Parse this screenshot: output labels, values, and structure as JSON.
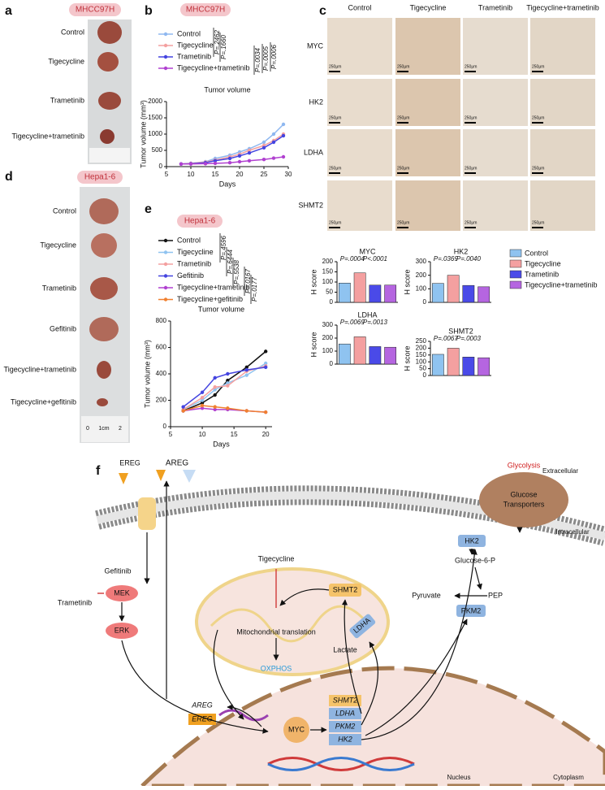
{
  "panel_labels": [
    "a",
    "b",
    "c",
    "d",
    "e",
    "f"
  ],
  "panel_a": {
    "model": "MHCC97H",
    "groups": [
      "Control",
      "Tigecycline",
      "Trametinib",
      "Tigecycline+trametinib"
    ]
  },
  "panel_d": {
    "model": "Hepa1-6",
    "groups": [
      "Control",
      "Tigecycline",
      "Trametinib",
      "Gefitinib",
      "Tigecycline+trametinib",
      "Tigecycline+gefitinib"
    ],
    "ruler": [
      "0",
      "1cm",
      "2"
    ]
  },
  "panel_c": {
    "columns": [
      "Control",
      "Tigecycline",
      "Trametinib",
      "Tigecycline+trametinib"
    ],
    "rows": [
      "MYC",
      "HK2",
      "LDHA",
      "SHMT2"
    ],
    "scale_bar": "250μm"
  },
  "legend": [
    {
      "name": "Control",
      "color": "#8fc3f0"
    },
    {
      "name": "Tigecycline",
      "color": "#f4a0a0"
    },
    {
      "name": "Trametinib",
      "color": "#4a4ae8"
    },
    {
      "name": "Tigecycline+trametinib",
      "color": "#b565e0"
    }
  ],
  "chart_data": [
    {
      "type": "line",
      "model": "MHCC97H",
      "title": "Tumor volume",
      "xlabel": "Days",
      "ylabel": "Tumor volume (mm³)",
      "x": [
        8,
        10,
        13,
        15,
        18,
        20,
        22,
        25,
        27,
        29
      ],
      "xlim": [
        5,
        30
      ],
      "xticks": [
        5,
        10,
        15,
        20,
        25,
        30
      ],
      "ylim": [
        0,
        2000
      ],
      "yticks": [
        0,
        500,
        1000,
        1500,
        2000
      ],
      "series": [
        {
          "name": "Control",
          "color": "#8fb8f0",
          "values": [
            80,
            100,
            150,
            250,
            350,
            450,
            550,
            750,
            1000,
            1300
          ]
        },
        {
          "name": "Tigecycline",
          "color": "#f4a0a0",
          "values": [
            80,
            100,
            140,
            200,
            300,
            380,
            500,
            650,
            800,
            1000
          ]
        },
        {
          "name": "Trametinib",
          "color": "#4444e0",
          "values": [
            80,
            90,
            120,
            180,
            250,
            330,
            420,
            580,
            750,
            950
          ]
        },
        {
          "name": "Tigecycline+trametinib",
          "color": "#b040d0",
          "values": [
            80,
            80,
            90,
            100,
            120,
            150,
            180,
            220,
            260,
            300
          ]
        }
      ],
      "annotations": [
        "P=.2462",
        "P=.1660",
        "P=.0034",
        "P=.0005",
        "P=.0006"
      ]
    },
    {
      "type": "line",
      "model": "Hepa1-6",
      "title": "Tumor volume",
      "xlabel": "Days",
      "ylabel": "Tumor volume (mm³)",
      "x": [
        7,
        10,
        12,
        14,
        17,
        20
      ],
      "xlim": [
        5,
        21
      ],
      "xticks": [
        5,
        10,
        15,
        20
      ],
      "ylim": [
        0,
        800
      ],
      "yticks": [
        0,
        200,
        400,
        600,
        800
      ],
      "series": [
        {
          "name": "Control",
          "color": "#111111",
          "values": [
            120,
            180,
            240,
            350,
            450,
            570
          ]
        },
        {
          "name": "Tigecycline",
          "color": "#8fc3f0",
          "values": [
            130,
            200,
            280,
            330,
            390,
            480
          ]
        },
        {
          "name": "Trametinib",
          "color": "#f4a0a0",
          "values": [
            130,
            220,
            300,
            310,
            420,
            460
          ]
        },
        {
          "name": "Gefitinib",
          "color": "#4444e0",
          "values": [
            150,
            260,
            370,
            400,
            430,
            450
          ]
        },
        {
          "name": "Tigecycline+trametinib",
          "color": "#b040d0",
          "values": [
            120,
            140,
            130,
            130,
            120,
            110
          ]
        },
        {
          "name": "Tigecycline+gefitinib",
          "color": "#f08030",
          "values": [
            120,
            160,
            150,
            140,
            120,
            110
          ]
        }
      ],
      "annotations": [
        "P=.4596",
        "P=.6444",
        "P=.5538",
        "P=.0167",
        "P=.0177"
      ]
    },
    {
      "type": "bar",
      "title": "MYC",
      "ylabel": "H score",
      "values": [
        95,
        145,
        85,
        85
      ],
      "ylim": [
        0,
        200
      ],
      "yticks": [
        0,
        50,
        100,
        150,
        200
      ],
      "annotations": [
        "P=.0004",
        "P<.0001"
      ]
    },
    {
      "type": "bar",
      "title": "HK2",
      "ylabel": "H score",
      "values": [
        140,
        200,
        125,
        115
      ],
      "ylim": [
        0,
        300
      ],
      "yticks": [
        0,
        100,
        200,
        300
      ],
      "annotations": [
        "P=.0369",
        "P=.0040"
      ]
    },
    {
      "type": "bar",
      "title": "LDHA",
      "ylabel": "H score",
      "values": [
        155,
        210,
        135,
        130
      ],
      "ylim": [
        0,
        300
      ],
      "yticks": [
        0,
        100,
        200,
        300
      ],
      "annotations": [
        "P=.0069",
        "P=.0013"
      ]
    },
    {
      "type": "bar",
      "title": "SHMT2",
      "ylabel": "H score",
      "values": [
        155,
        200,
        135,
        130
      ],
      "ylim": [
        0,
        250
      ],
      "yticks": [
        0,
        50,
        100,
        150,
        200,
        250
      ],
      "annotations": [
        "P=.0067",
        "P=.0003"
      ]
    }
  ],
  "panel_f": {
    "ligands": [
      "EREG",
      "AREG"
    ],
    "extracellular": "Extracellular",
    "glycolysis": "Glycolysis",
    "transporter": [
      "Glucose",
      "Transporters"
    ],
    "intracellular": "Intracellular",
    "tigecycline": "Tigecycline",
    "gefitinib": "Gefitinib",
    "trametinib": "Trametinib",
    "mek": "MEK",
    "erk": "ERK",
    "mito_translation": "Mitochondrial translation",
    "oxphos": "OXPHOS",
    "shmt2": "SHMT2",
    "hk2": "HK2",
    "g6p": "Glucose-6-P",
    "pyruvate": "Pyruvate",
    "pep": "PEP",
    "pkm2": "PKM2",
    "ldha": "LDHA",
    "lactate": "Lactate",
    "nuclear_genes": [
      "AREG",
      "EREG"
    ],
    "myc": "MYC",
    "targets": [
      "SHMT2",
      "LDHA",
      "PKM2",
      "HK2"
    ],
    "nucleus": "Nucleus",
    "cytoplasm": "Cytoplasm"
  }
}
